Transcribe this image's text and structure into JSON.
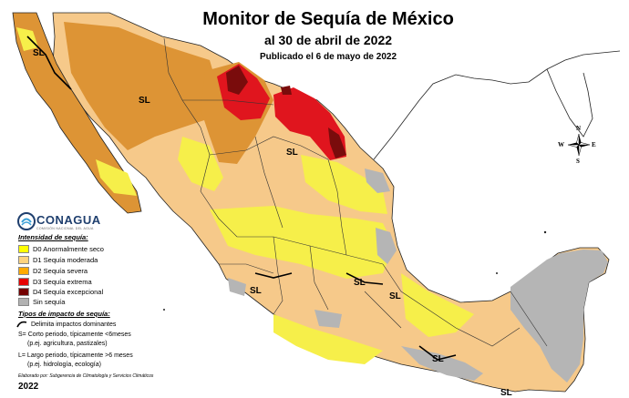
{
  "header": {
    "title": "Monitor de Sequía de México",
    "date": "al 30 de abril de 2022",
    "published": "Publicado el 6 de mayo de 2022"
  },
  "region_labels": [
    "SL",
    "SL",
    "SL",
    "SL",
    "SL",
    "SL",
    "SL",
    "SL"
  ],
  "compass": {
    "north": "N",
    "south": "S",
    "east": "E",
    "west": "W"
  },
  "logo": {
    "name": "CONAGUA",
    "tagline": "COMISIÓN NACIONAL DEL AGUA"
  },
  "legend": {
    "intensity_title": "Intensidad de sequía:",
    "items": [
      {
        "label": "D0 Anormalmente seco",
        "color": "#ffff00"
      },
      {
        "label": "D1 Sequía moderada",
        "color": "#fcd37f"
      },
      {
        "label": "D2 Sequía severa",
        "color": "#ffaa00"
      },
      {
        "label": "D3 Sequía extrema",
        "color": "#e60000"
      },
      {
        "label": "D4 Sequía excepcional",
        "color": "#730000"
      },
      {
        "label": "Sin sequía",
        "color": "#b2b2b2"
      }
    ],
    "impact_title": "Tipos de impacto de sequía:",
    "impact_line": "Delimita impactos dominantes",
    "impact_s": "S= Corto periodo, típicamente <6meses",
    "impact_s_eg": "(p.ej. agricultura, pastizales)",
    "impact_l": "L= Largo periodo, típicamente >6 meses",
    "impact_l_eg": "(p.ej. hidrología, ecología)"
  },
  "credit": "Elaborado por: Subgerencia de Climatología y Servicios Climáticos",
  "year": "2022",
  "colors": {
    "water": "#ffffff",
    "d0": "#f6ef4a",
    "d1": "#f6c98a",
    "d2": "#dd9435",
    "d3": "#e0151e",
    "d4": "#7a0c0c",
    "none": "#b5b5b5",
    "border": "#222222"
  }
}
